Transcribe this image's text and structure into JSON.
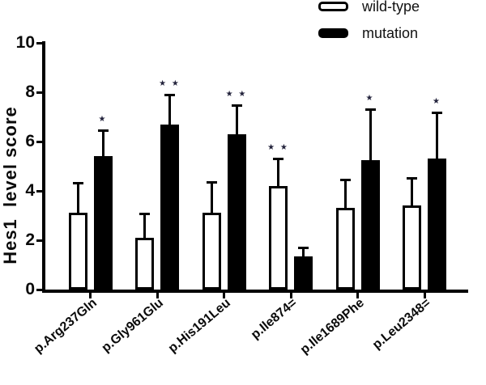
{
  "chart_data": {
    "type": "bar",
    "title": "",
    "ylabel": "Hes1  level score",
    "xlabel": "",
    "categories": [
      "p.Arg237Gln",
      "p.Gly961Glu",
      "p.His191Leu",
      "p.Ile874=",
      "p.Ile1689Phe",
      "p.Leu2348="
    ],
    "series": [
      {
        "name": "wild-type",
        "fill": "#ffffff",
        "values": [
          3.1,
          2.1,
          3.1,
          4.2,
          3.3,
          3.4
        ],
        "errors": [
          1.25,
          1.0,
          1.3,
          1.15,
          1.2,
          1.15
        ]
      },
      {
        "name": "mutation",
        "fill": "#000000",
        "values": [
          5.4,
          6.7,
          6.3,
          1.35,
          5.25,
          5.3
        ],
        "errors": [
          1.1,
          1.25,
          1.2,
          0.4,
          2.1,
          1.9
        ]
      }
    ],
    "significance": [
      {
        "category": "p.Arg237Gln",
        "marks": "*",
        "on": "mutation"
      },
      {
        "category": "p.Gly961Glu",
        "marks": "**",
        "on": "mutation"
      },
      {
        "category": "p.His191Leu",
        "marks": "**",
        "on": "mutation"
      },
      {
        "category": "p.Ile874=",
        "marks": "**",
        "on": "wild-type"
      },
      {
        "category": "p.Ile1689Phe",
        "marks": "*",
        "on": "mutation"
      },
      {
        "category": "p.Leu2348=",
        "marks": "*",
        "on": "mutation"
      }
    ],
    "y_axis": {
      "min": 0,
      "max": 10,
      "tick_step": 2,
      "ticks": [
        0,
        2,
        4,
        6,
        8,
        10
      ]
    },
    "legend": {
      "position": "top-right",
      "entries": [
        "wild-type",
        "mutation"
      ]
    },
    "grid": false,
    "error_bars": "upper-only",
    "colors": {
      "wildtype_fill": "#ffffff",
      "mutation_fill": "#000000",
      "outline": "#000000",
      "significance_mark": "#23233c",
      "background": "#ffffff"
    }
  }
}
